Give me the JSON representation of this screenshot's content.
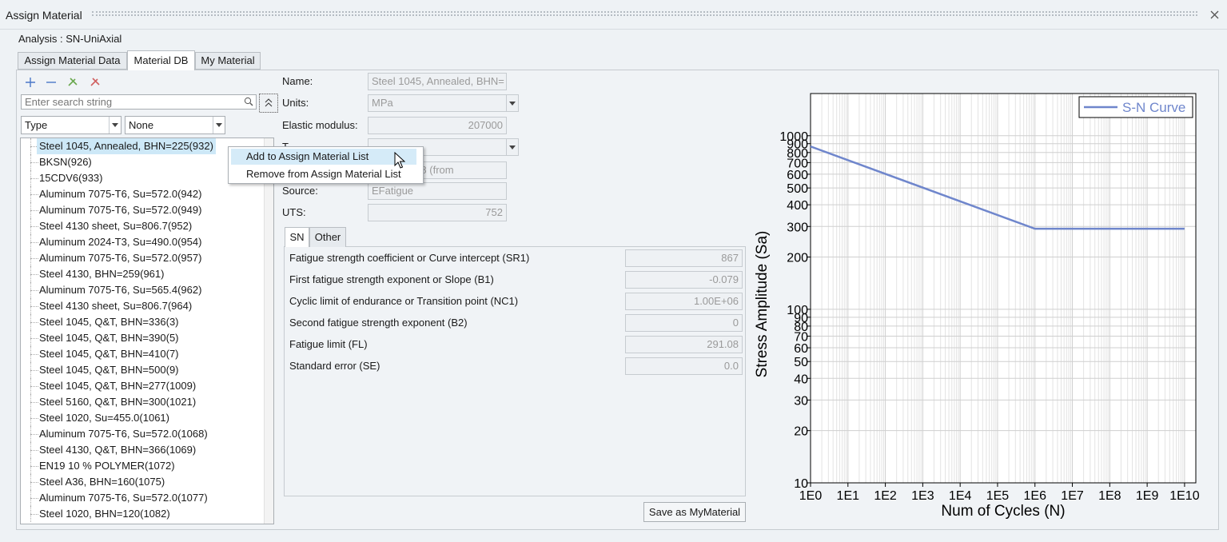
{
  "window_title": "Assign Material",
  "analysis": "Analysis : SN-UniAxial",
  "tabs": [
    "Assign Material Data",
    "Material DB",
    "My Material"
  ],
  "search_placeholder": "Enter search string",
  "filters": [
    "Type",
    "None"
  ],
  "materials": [
    "Steel 1045, Annealed, BHN=225(932)",
    "BKSN(926)",
    "15CDV6(933)",
    "Aluminum 7075-T6, Su=572.0(942)",
    "Aluminum 7075-T6, Su=572.0(949)",
    "Steel 4130 sheet, Su=806.7(952)",
    "Aluminum 2024-T3, Su=490.0(954)",
    "Aluminum 7075-T6, Su=572.0(957)",
    "Steel 4130, BHN=259(961)",
    "Aluminum 7075-T6, Su=565.4(962)",
    "Steel 4130 sheet, Su=806.7(964)",
    "Steel 1045, Q&T, BHN=336(3)",
    "Steel 1045, Q&T, BHN=390(5)",
    "Steel 1045, Q&T, BHN=410(7)",
    "Steel 1045, Q&T, BHN=500(9)",
    "Steel 1045, Q&T, BHN=277(1009)",
    "Steel 5160, Q&T, BHN=300(1021)",
    "Steel 1020, Su=455.0(1061)",
    "Aluminum 7075-T6, Su=572.0(1068)",
    "Steel 4130, Q&T, BHN=366(1069)",
    "EN19 10 % POLYMER(1072)",
    "Steel A36, BHN=160(1075)",
    "Aluminum 7075-T6, Su=572.0(1077)",
    "Steel 1020, BHN=120(1082)"
  ],
  "context_menu": [
    "Add to Assign Material List",
    "Remove from Assign Material List"
  ],
  "fields": [
    {
      "label": "Name:",
      "value": "Steel 1045, Annealed, BHN="
    },
    {
      "label": "Units:",
      "value": "MPa"
    },
    {
      "label": "Elastic modulus:",
      "value": "207000"
    },
    {
      "label": "T"
    },
    {
      "value": "- June 1998 (from"
    },
    {
      "label": "Source:",
      "value": "EFatigue"
    },
    {
      "label": "UTS:",
      "value": "752"
    }
  ],
  "subtabs": [
    "SN",
    "Other"
  ],
  "parameters": [
    {
      "label": "Fatigue strength coefficient or Curve intercept (SR1)",
      "value": "867"
    },
    {
      "label": "First fatigue strength exponent or Slope (B1)",
      "value": "-0.079"
    },
    {
      "label": "Cyclic limit of endurance or Transition point (NC1)",
      "value": "1.00E+06"
    },
    {
      "label": "Second fatigue strength exponent (B2)",
      "value": "0"
    },
    {
      "label": "Fatigue limit (FL)",
      "value": "291.08"
    },
    {
      "label": "Standard error (SE)",
      "value": "0.0"
    }
  ],
  "save_button": "Save as MyMaterial",
  "chart_data": {
    "type": "line",
    "x_label": "Num of Cycles (N)",
    "y_label": "Stress Amplitude (Sa)",
    "x": [
      1,
      1000000,
      10000000000
    ],
    "series": [
      {
        "name": "S-N Curve",
        "color": "#6f86cc",
        "values": [
          867,
          291.08,
          291.08
        ]
      }
    ],
    "xlim": [
      1,
      20000000000
    ],
    "ylim": [
      10,
      1750
    ],
    "x_log": true,
    "y_log": true,
    "grid": true,
    "minor_grid": true,
    "legend": "upper right",
    "xticks": [
      {
        "value": 1,
        "label": "1E0"
      },
      {
        "value": 10,
        "label": "1E1"
      },
      {
        "value": 100,
        "label": "1E2"
      },
      {
        "value": 1000,
        "label": "1E3"
      },
      {
        "value": 10000,
        "label": "1E4"
      },
      {
        "value": 100000,
        "label": "1E5"
      },
      {
        "value": 1000000,
        "label": "1E6"
      },
      {
        "value": 10000000,
        "label": "1E7"
      },
      {
        "value": 100000000,
        "label": "1E8"
      },
      {
        "value": 1000000000,
        "label": "1E9"
      },
      {
        "value": 10000000000,
        "label": "1E10"
      }
    ],
    "yticks": [
      10,
      20,
      30,
      40,
      50,
      60,
      70,
      80,
      90,
      100,
      200,
      300,
      400,
      500,
      600,
      700,
      800,
      900,
      1000
    ]
  }
}
